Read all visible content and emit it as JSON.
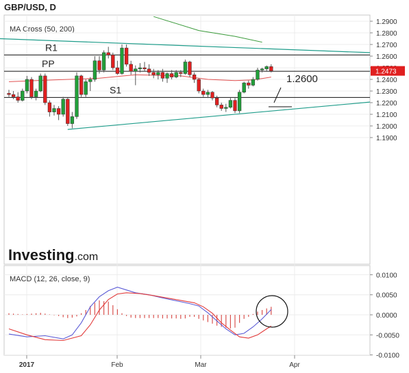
{
  "header": {
    "title": "GBP/USD, D"
  },
  "chart_data": [
    {
      "type": "candlestick",
      "indicator_label": "MA Cross (50, 200)",
      "y_ticks": [
        "1.2900",
        "1.2800",
        "1.2700",
        "1.2600",
        "1.2500",
        "1.2400",
        "1.2300",
        "1.2200",
        "1.2100",
        "1.2000",
        "1.1900"
      ],
      "ylim": [
        1.185,
        1.2925
      ],
      "x_ticks": [
        "2017",
        "Feb",
        "Mar",
        "Apr"
      ],
      "current_price": "1.2473",
      "candles": [
        [
          1.228,
          1.231,
          1.225,
          1.227
        ],
        [
          1.227,
          1.23,
          1.223,
          1.225
        ],
        [
          1.225,
          1.229,
          1.22,
          1.222
        ],
        [
          1.222,
          1.232,
          1.221,
          1.23
        ],
        [
          1.23,
          1.243,
          1.228,
          1.24
        ],
        [
          1.24,
          1.242,
          1.223,
          1.225
        ],
        [
          1.225,
          1.232,
          1.222,
          1.23
        ],
        [
          1.23,
          1.245,
          1.229,
          1.243
        ],
        [
          1.243,
          1.245,
          1.218,
          1.22
        ],
        [
          1.22,
          1.222,
          1.208,
          1.212
        ],
        [
          1.212,
          1.218,
          1.209,
          1.215
        ],
        [
          1.215,
          1.217,
          1.205,
          1.21
        ],
        [
          1.21,
          1.225,
          1.208,
          1.223
        ],
        [
          1.223,
          1.224,
          1.2,
          1.202
        ],
        [
          1.202,
          1.212,
          1.198,
          1.208
        ],
        [
          1.208,
          1.246,
          1.206,
          1.243
        ],
        [
          1.243,
          1.244,
          1.225,
          1.227
        ],
        [
          1.227,
          1.24,
          1.225,
          1.238
        ],
        [
          1.238,
          1.242,
          1.23,
          1.24
        ],
        [
          1.24,
          1.26,
          1.238,
          1.256
        ],
        [
          1.256,
          1.26,
          1.245,
          1.248
        ],
        [
          1.248,
          1.265,
          1.246,
          1.263
        ],
        [
          1.263,
          1.268,
          1.258,
          1.261
        ],
        [
          1.261,
          1.263,
          1.248,
          1.25
        ],
        [
          1.25,
          1.256,
          1.244,
          1.245
        ],
        [
          1.245,
          1.27,
          1.244,
          1.267
        ],
        [
          1.267,
          1.27,
          1.251,
          1.253
        ],
        [
          1.253,
          1.256,
          1.244,
          1.247
        ],
        [
          1.247,
          1.252,
          1.235,
          1.249
        ],
        [
          1.249,
          1.254,
          1.246,
          1.25
        ],
        [
          1.25,
          1.255,
          1.247,
          1.249
        ],
        [
          1.249,
          1.253,
          1.243,
          1.246
        ],
        [
          1.246,
          1.249,
          1.241,
          1.244
        ],
        [
          1.244,
          1.248,
          1.24,
          1.246
        ],
        [
          1.246,
          1.249,
          1.238,
          1.241
        ],
        [
          1.241,
          1.246,
          1.237,
          1.245
        ],
        [
          1.245,
          1.248,
          1.24,
          1.242
        ],
        [
          1.242,
          1.248,
          1.241,
          1.246
        ],
        [
          1.246,
          1.248,
          1.242,
          1.245
        ],
        [
          1.245,
          1.257,
          1.244,
          1.255
        ],
        [
          1.255,
          1.256,
          1.242,
          1.244
        ],
        [
          1.244,
          1.246,
          1.237,
          1.24
        ],
        [
          1.24,
          1.241,
          1.228,
          1.23
        ],
        [
          1.23,
          1.232,
          1.225,
          1.227
        ],
        [
          1.227,
          1.231,
          1.224,
          1.229
        ],
        [
          1.229,
          1.23,
          1.222,
          1.224
        ],
        [
          1.224,
          1.226,
          1.216,
          1.218
        ],
        [
          1.218,
          1.22,
          1.213,
          1.215
        ],
        [
          1.215,
          1.219,
          1.212,
          1.216
        ],
        [
          1.216,
          1.224,
          1.215,
          1.222
        ],
        [
          1.222,
          1.224,
          1.211,
          1.213
        ],
        [
          1.213,
          1.231,
          1.211,
          1.229
        ],
        [
          1.229,
          1.238,
          1.228,
          1.237
        ],
        [
          1.237,
          1.239,
          1.232,
          1.235
        ],
        [
          1.235,
          1.242,
          1.234,
          1.24
        ],
        [
          1.24,
          1.25,
          1.239,
          1.248
        ],
        [
          1.248,
          1.25,
          1.246,
          1.249
        ],
        [
          1.249,
          1.252,
          1.247,
          1.251
        ],
        [
          1.251,
          1.253,
          1.246,
          1.2473
        ]
      ],
      "ma50": [
        [
          0,
          1.238
        ],
        [
          10,
          1.2395
        ],
        [
          20,
          1.241
        ],
        [
          28,
          1.244
        ],
        [
          38,
          1.243
        ],
        [
          44,
          1.24
        ],
        [
          50,
          1.239
        ],
        [
          54,
          1.2395
        ],
        [
          58,
          1.242
        ]
      ],
      "ma200": [
        [
          32,
          1.294
        ],
        [
          42,
          1.282
        ],
        [
          50,
          1.277
        ],
        [
          56,
          1.272
        ]
      ],
      "levels": [
        {
          "name": "R1",
          "value": 1.261
        },
        {
          "name": "PP",
          "value": 1.247
        },
        {
          "name": "S1",
          "value": 1.2245
        }
      ],
      "annotation": "1.2600",
      "trendline_upper": [
        [
          -2,
          1.275
        ],
        [
          63,
          1.263
        ]
      ],
      "trendline_lower": [
        [
          13,
          1.197
        ],
        [
          63,
          1.2205
        ]
      ]
    },
    {
      "type": "macd",
      "indicator_label": "MACD (12, 26, close, 9)",
      "y_ticks": [
        "0.0100",
        "0.0050",
        "0.0000",
        "-0.0050",
        "-0.0100"
      ],
      "ylim": [
        -0.0103,
        0.0108
      ],
      "histogram": [
        0.0004,
        0.0003,
        0.0002,
        0.0001,
        0.0002,
        0.0003,
        0.0004,
        0.0005,
        0.0003,
        0.0001,
        -0.0001,
        -0.0003,
        -0.0006,
        -0.0008,
        -0.0007,
        -0.0004,
        0.0004,
        0.0012,
        0.0022,
        0.003,
        0.0036,
        0.0034,
        0.0033,
        0.0024,
        0.0014,
        0.0004,
        -0.0003,
        -0.0007,
        -0.0008,
        -0.0008,
        -0.0008,
        -0.0008,
        -0.0008,
        -0.0008,
        -0.0009,
        -0.0009,
        -0.0009,
        -0.0009,
        -0.001,
        -0.0009,
        -0.0005,
        -0.0005,
        -0.001,
        -0.0014,
        -0.0018,
        -0.0022,
        -0.0027,
        -0.003,
        -0.0032,
        -0.0034,
        -0.0032,
        -0.002,
        -0.001,
        -0.0005,
        0.0002,
        0.0008,
        0.0012,
        0.0016,
        0.002
      ],
      "macd_line": [
        [
          0,
          -0.0048
        ],
        [
          4,
          -0.0055
        ],
        [
          8,
          -0.0052
        ],
        [
          12,
          -0.006
        ],
        [
          14,
          -0.005
        ],
        [
          16,
          -0.002
        ],
        [
          18,
          0.002
        ],
        [
          20,
          0.0045
        ],
        [
          22,
          0.006
        ],
        [
          24,
          0.0069
        ],
        [
          26,
          0.0062
        ],
        [
          28,
          0.0055
        ],
        [
          31,
          0.005
        ],
        [
          34,
          0.0042
        ],
        [
          37,
          0.0035
        ],
        [
          40,
          0.0028
        ],
        [
          42,
          0.0022
        ],
        [
          44,
          0.0005
        ],
        [
          46,
          -0.0015
        ],
        [
          48,
          -0.0035
        ],
        [
          50,
          -0.005
        ],
        [
          52,
          -0.0046
        ],
        [
          54,
          -0.003
        ],
        [
          56,
          -0.001
        ],
        [
          58,
          0.0013
        ]
      ],
      "signal_line": [
        [
          0,
          -0.0035
        ],
        [
          4,
          -0.005
        ],
        [
          8,
          -0.0062
        ],
        [
          12,
          -0.0064
        ],
        [
          16,
          -0.0052
        ],
        [
          18,
          -0.0025
        ],
        [
          20,
          0.0012
        ],
        [
          22,
          0.0038
        ],
        [
          24,
          0.0052
        ],
        [
          26,
          0.0055
        ],
        [
          29,
          0.0053
        ],
        [
          32,
          0.0048
        ],
        [
          35,
          0.0042
        ],
        [
          38,
          0.0036
        ],
        [
          41,
          0.003
        ],
        [
          43,
          0.002
        ],
        [
          45,
          0.0004
        ],
        [
          47,
          -0.002
        ],
        [
          49,
          -0.0038
        ],
        [
          51,
          -0.0055
        ],
        [
          53,
          -0.0058
        ],
        [
          55,
          -0.005
        ],
        [
          57,
          -0.0035
        ],
        [
          58,
          -0.0028
        ]
      ],
      "colors": {
        "macd": "#5b5bd6",
        "signal": "#e23a3a",
        "hist": "#d9534f"
      }
    }
  ],
  "logo": {
    "bold": "Investing",
    "light": ".com"
  }
}
